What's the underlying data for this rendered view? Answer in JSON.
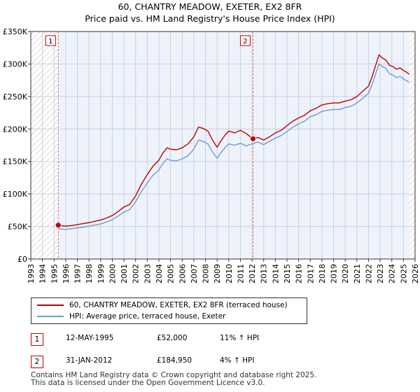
{
  "title_line1": "60, CHANTRY MEADOW, EXETER, EX2 8FR",
  "title_line2": "Price paid vs. HM Land Registry's House Price Index (HPI)",
  "colors": {
    "property": "#c00000",
    "hpi": "#6c9bd2",
    "plot_bg": "#eef2fb",
    "grid": "#c8d0e0",
    "marker_line": "#e07070"
  },
  "chart_data": {
    "type": "line",
    "xlim": [
      1993,
      2026
    ],
    "ylim": [
      0,
      350000
    ],
    "x_ticks": [
      "1993",
      "1994",
      "1995",
      "1996",
      "1997",
      "1998",
      "1999",
      "2000",
      "2001",
      "2002",
      "2003",
      "2004",
      "2005",
      "2006",
      "2007",
      "2008",
      "2009",
      "2010",
      "2011",
      "2012",
      "2013",
      "2014",
      "2015",
      "2016",
      "2017",
      "2018",
      "2019",
      "2020",
      "2021",
      "2022",
      "2023",
      "2024",
      "2025",
      "2026"
    ],
    "y_ticks": [
      {
        "value": 0,
        "label": "£0"
      },
      {
        "value": 50000,
        "label": "£50K"
      },
      {
        "value": 100000,
        "label": "£100K"
      },
      {
        "value": 150000,
        "label": "£150K"
      },
      {
        "value": 200000,
        "label": "£200K"
      },
      {
        "value": 250000,
        "label": "£250K"
      },
      {
        "value": 300000,
        "label": "£300K"
      },
      {
        "value": 350000,
        "label": "£350K"
      }
    ],
    "hatched_before": 1995.36,
    "hatched_after": 2025.5,
    "series": [
      {
        "name": "60, CHANTRY MEADOW, EXETER, EX2 8FR (terraced house)",
        "color": "#c00000",
        "x": [
          1995.36,
          1995.7,
          1996.0,
          1996.5,
          1997.0,
          1997.5,
          1998.0,
          1998.5,
          1999.0,
          1999.5,
          2000.0,
          2000.5,
          2001.0,
          2001.5,
          2002.0,
          2002.5,
          2003.0,
          2003.5,
          2004.0,
          2004.3,
          2004.7,
          2005.0,
          2005.5,
          2006.0,
          2006.5,
          2007.0,
          2007.4,
          2007.8,
          2008.2,
          2008.6,
          2009.0,
          2009.3,
          2009.7,
          2010.0,
          2010.5,
          2011.0,
          2011.5,
          2012.08,
          2012.5,
          2013.0,
          2013.5,
          2014.0,
          2014.5,
          2015.0,
          2015.5,
          2016.0,
          2016.5,
          2017.0,
          2017.5,
          2018.0,
          2018.5,
          2019.0,
          2019.5,
          2020.0,
          2020.5,
          2021.0,
          2021.5,
          2022.0,
          2022.3,
          2022.6,
          2022.9,
          2023.2,
          2023.5,
          2023.8,
          2024.1,
          2024.4,
          2024.7,
          2025.0,
          2025.3,
          2025.5
        ],
        "y": [
          52000,
          51000,
          50500,
          51500,
          53000,
          54500,
          56000,
          58000,
          60000,
          63000,
          67000,
          73000,
          80000,
          84000,
          97000,
          115000,
          130000,
          143000,
          152000,
          162000,
          171000,
          169000,
          168000,
          171000,
          177000,
          188000,
          203000,
          201000,
          197000,
          183000,
          172000,
          181000,
          191000,
          197000,
          194000,
          198000,
          193000,
          184950,
          187000,
          183000,
          188000,
          194000,
          198000,
          205000,
          212000,
          217000,
          221000,
          228000,
          232000,
          237000,
          239000,
          240000,
          240000,
          243000,
          245000,
          250000,
          258000,
          266000,
          280000,
          297000,
          314000,
          309000,
          306000,
          298000,
          296000,
          292000,
          294000,
          290000,
          287000,
          284000
        ]
      },
      {
        "name": "HPI: Average price, terraced house, Exeter",
        "color": "#6c9bd2",
        "x": [
          1995.36,
          1995.7,
          1996.0,
          1996.5,
          1997.0,
          1997.5,
          1998.0,
          1998.5,
          1999.0,
          1999.5,
          2000.0,
          2000.5,
          2001.0,
          2001.5,
          2002.0,
          2002.5,
          2003.0,
          2003.5,
          2004.0,
          2004.3,
          2004.7,
          2005.0,
          2005.5,
          2006.0,
          2006.5,
          2007.0,
          2007.4,
          2007.8,
          2008.2,
          2008.6,
          2009.0,
          2009.3,
          2009.7,
          2010.0,
          2010.5,
          2011.0,
          2011.5,
          2012.08,
          2012.5,
          2013.0,
          2013.5,
          2014.0,
          2014.5,
          2015.0,
          2015.5,
          2016.0,
          2016.5,
          2017.0,
          2017.5,
          2018.0,
          2018.5,
          2019.0,
          2019.5,
          2020.0,
          2020.5,
          2021.0,
          2021.5,
          2022.0,
          2022.3,
          2022.6,
          2022.9,
          2023.2,
          2023.5,
          2023.8,
          2024.1,
          2024.4,
          2024.7,
          2025.0,
          2025.3,
          2025.5
        ],
        "y": [
          46800,
          46000,
          45500,
          46500,
          47800,
          49000,
          50500,
          52300,
          54000,
          57000,
          60500,
          66000,
          72000,
          76000,
          88000,
          104000,
          117000,
          129000,
          137000,
          146000,
          154000,
          152000,
          151000,
          154000,
          159000,
          169000,
          183000,
          181000,
          177000,
          165000,
          155000,
          163000,
          172000,
          177000,
          175000,
          178000,
          174000,
          177800,
          180000,
          176000,
          181000,
          186000,
          190000,
          196000,
          203000,
          208000,
          212000,
          219000,
          222000,
          227000,
          229000,
          230000,
          230000,
          233000,
          235000,
          240000,
          247000,
          255000,
          268000,
          284000,
          300000,
          296000,
          293000,
          285000,
          283000,
          279000,
          281000,
          277000,
          274000,
          272000
        ]
      }
    ],
    "markers": [
      {
        "label": "1",
        "x": 1995.36,
        "y": 52000
      },
      {
        "label": "2",
        "x": 2012.08,
        "y": 184950
      }
    ]
  },
  "legend": [
    {
      "label": "60, CHANTRY MEADOW, EXETER, EX2 8FR (terraced house)",
      "color": "#c00000"
    },
    {
      "label": "HPI: Average price, terraced house, Exeter",
      "color": "#6c9bd2"
    }
  ],
  "transactions": [
    {
      "num": "1",
      "date": "12-MAY-1995",
      "price": "£52,000",
      "hpi": "11% ↑ HPI"
    },
    {
      "num": "2",
      "date": "31-JAN-2012",
      "price": "£184,950",
      "hpi": "4% ↑ HPI"
    }
  ],
  "footer_line1": "Contains HM Land Registry data © Crown copyright and database right 2025.",
  "footer_line2": "This data is licensed under the Open Government Licence v3.0."
}
